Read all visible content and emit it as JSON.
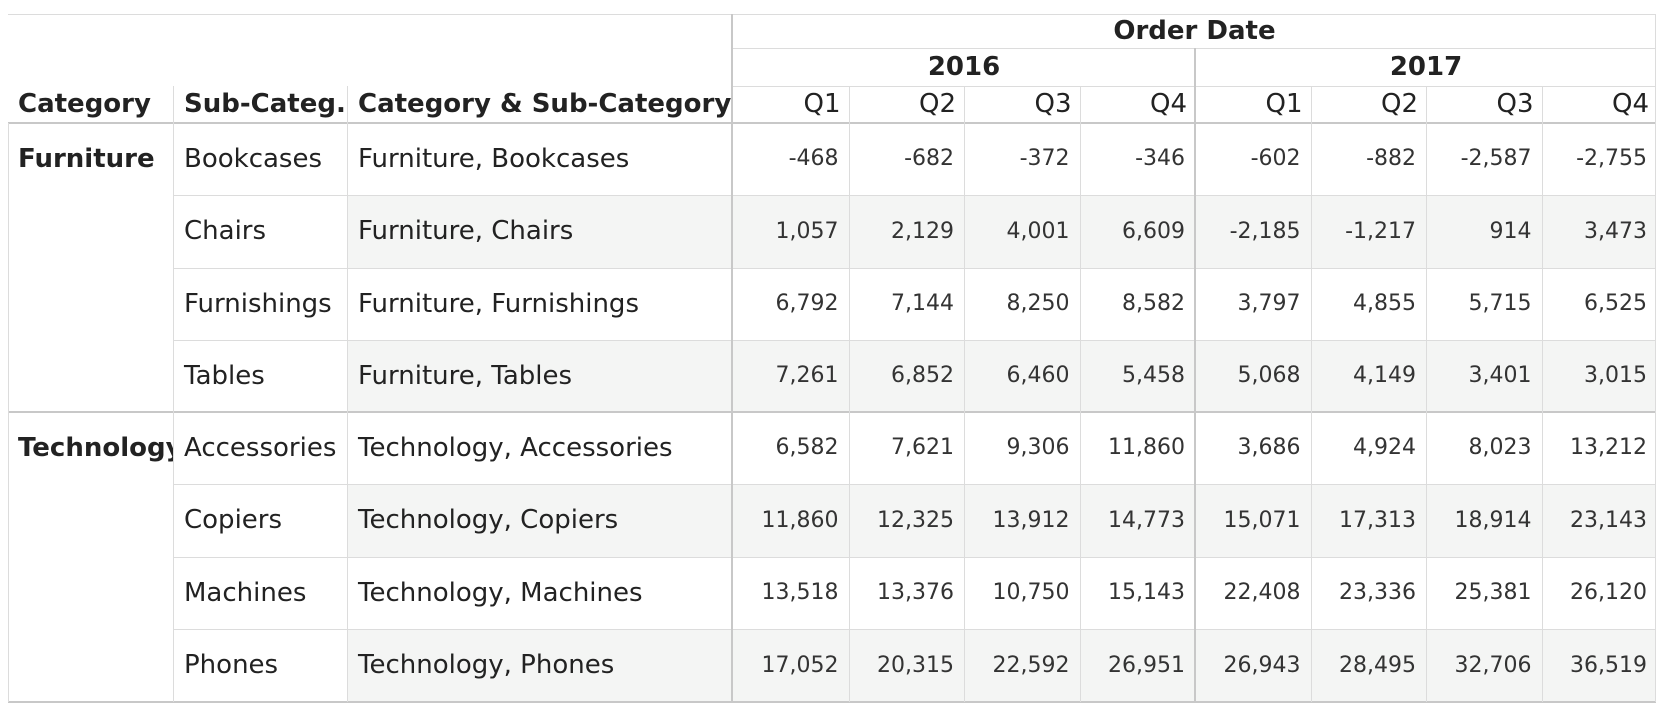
{
  "chart_data": {
    "type": "table",
    "title": "",
    "column_group_label": "Order Date",
    "row_headers": [
      "Category",
      "Sub-Categ..",
      "Category & Sub-Category"
    ],
    "years": [
      {
        "label": "2016",
        "quarters": [
          "Q1",
          "Q2",
          "Q3",
          "Q4"
        ]
      },
      {
        "label": "2017",
        "quarters": [
          "Q1",
          "Q2",
          "Q3",
          "Q4"
        ]
      }
    ],
    "groups": [
      {
        "category": "Furniture",
        "rows": [
          {
            "sub": "Bookcases",
            "combo": "Furniture, Bookcases",
            "values": [
              "-468",
              "-682",
              "-372",
              "-346",
              "-602",
              "-882",
              "-2,587",
              "-2,755"
            ]
          },
          {
            "sub": "Chairs",
            "combo": "Furniture, Chairs",
            "values": [
              "1,057",
              "2,129",
              "4,001",
              "6,609",
              "-2,185",
              "-1,217",
              "914",
              "3,473"
            ]
          },
          {
            "sub": "Furnishings",
            "combo": "Furniture, Furnishings",
            "values": [
              "6,792",
              "7,144",
              "8,250",
              "8,582",
              "3,797",
              "4,855",
              "5,715",
              "6,525"
            ]
          },
          {
            "sub": "Tables",
            "combo": "Furniture, Tables",
            "values": [
              "7,261",
              "6,852",
              "6,460",
              "5,458",
              "5,068",
              "4,149",
              "3,401",
              "3,015"
            ]
          }
        ]
      },
      {
        "category": "Technology",
        "rows": [
          {
            "sub": "Accessories",
            "combo": "Technology, Accessories",
            "values": [
              "6,582",
              "7,621",
              "9,306",
              "11,860",
              "3,686",
              "4,924",
              "8,023",
              "13,212"
            ]
          },
          {
            "sub": "Copiers",
            "combo": "Technology, Copiers",
            "values": [
              "11,860",
              "12,325",
              "13,912",
              "14,773",
              "15,071",
              "17,313",
              "18,914",
              "23,143"
            ]
          },
          {
            "sub": "Machines",
            "combo": "Technology, Machines",
            "values": [
              "13,518",
              "13,376",
              "10,750",
              "15,143",
              "22,408",
              "23,336",
              "25,381",
              "26,120"
            ]
          },
          {
            "sub": "Phones",
            "combo": "Technology, Phones",
            "values": [
              "17,052",
              "20,315",
              "22,592",
              "26,951",
              "26,943",
              "28,495",
              "32,706",
              "36,519"
            ]
          }
        ]
      }
    ]
  }
}
